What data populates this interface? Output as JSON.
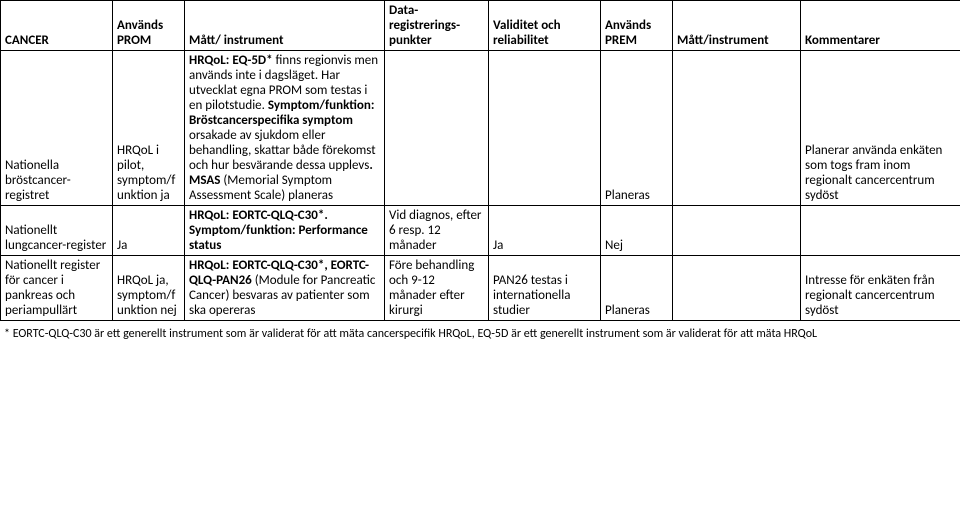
{
  "headers": {
    "c0": "CANCER",
    "c1": "Används PROM",
    "c2": "Mått/ instrument",
    "c3": "Data-registrerings-punkter",
    "c4": "Validitet och reliabilitet",
    "c5": "Används PREM",
    "c6": "Mått/instrument",
    "c7": "Kommentarer"
  },
  "rows": [
    {
      "c0": "Nationella bröstcancer-registret",
      "c1": "HRQoL i pilot, symptom/funktion ja",
      "c2_html": "<span class='b'>HRQoL: EQ-5D*</span> finns regionvis men används inte i dagsläget. Har utvecklat egna PROM som testas i en pilotstudie. <span class='b'>Symptom/funktion: Bröstcancerspecifika symptom</span> orsakade av sjukdom eller behandling, skattar både förekomst och hur besvärande dessa upplevs<span class='b'>. MSAS</span> (Memorial Symptom Assessment Scale) planeras",
      "c3": "",
      "c4": "",
      "c5": "Planeras",
      "c6": "",
      "c7": "Planerar använda enkäten som togs fram inom regionalt cancercentrum sydöst"
    },
    {
      "c0": "Nationellt lungcancer-register",
      "c1": "Ja",
      "c2_html": "<span class='b'>HRQoL: EORTC-QLQ-C30*. Symptom/funktion: Performance status</span>",
      "c3": "Vid diagnos, efter 6 resp. 12 månader",
      "c4": "Ja",
      "c5": "Nej",
      "c6": "",
      "c7": ""
    },
    {
      "c0": "Nationellt register för cancer i pankreas och periampullärt",
      "c1": "HRQoL ja, symptom/funktion nej",
      "c2_html": "<span class='b'>HRQoL: EORTC-QLQ-C30*, EORTC-QLQ-PAN26</span> (Module for Pancreatic Cancer) besvaras av patienter som ska opereras",
      "c3": "Före behandling och 9-12 månader efter kirurgi",
      "c4": "PAN26 testas i internationella studier",
      "c5": "Planeras",
      "c6": "",
      "c7": "Intresse för enkäten från regionalt cancercentrum sydöst"
    }
  ],
  "footnote": "* EORTC-QLQ-C30 är ett generellt instrument som är validerat för att mäta cancerspecifik HRQoL, EQ-5D är ett generellt instrument som är validerat för att mäta HRQoL"
}
